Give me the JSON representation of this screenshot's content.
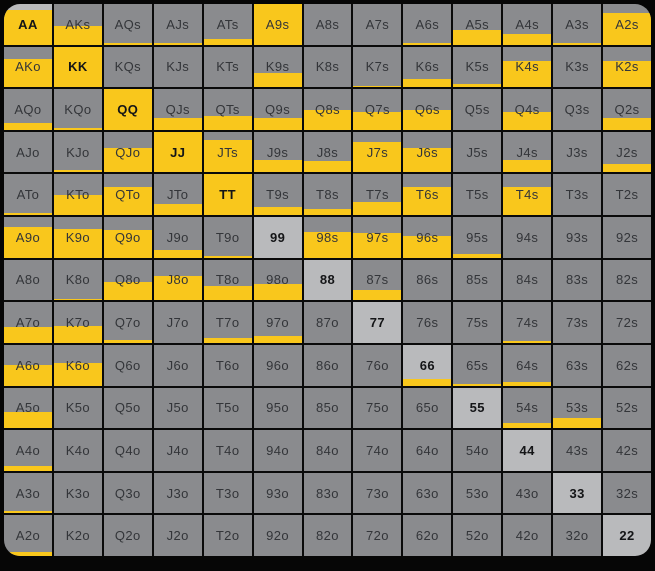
{
  "widget": {
    "name": "poker-hand-range-matrix",
    "rows": 13,
    "cols": 13
  },
  "colors": {
    "selected_fill": "#F9C71C",
    "cell_gray": "#8A8B8E",
    "pair_gray": "#B9BABC",
    "grid_line": "#0A0A0A",
    "label_text": "#333539",
    "pair_label_text": "#141517"
  },
  "chart_data": {
    "type": "heatmap",
    "description": "Poker starting-hand range grid; value = percent of cell filled yellow (selection frequency), measured bottom-up",
    "rows": [
      [
        {
          "label": "AA",
          "fill": 85,
          "pair": true
        },
        {
          "label": "AKs",
          "fill": 45,
          "pair": false
        },
        {
          "label": "AQs",
          "fill": 5,
          "pair": false
        },
        {
          "label": "AJs",
          "fill": 4,
          "pair": false
        },
        {
          "label": "ATs",
          "fill": 15,
          "pair": false
        },
        {
          "label": "A9s",
          "fill": 100,
          "pair": false
        },
        {
          "label": "A8s",
          "fill": 0,
          "pair": false
        },
        {
          "label": "A7s",
          "fill": 0,
          "pair": false
        },
        {
          "label": "A6s",
          "fill": 5,
          "pair": false
        },
        {
          "label": "A5s",
          "fill": 35,
          "pair": false
        },
        {
          "label": "A4s",
          "fill": 25,
          "pair": false
        },
        {
          "label": "A3s",
          "fill": 5,
          "pair": false
        },
        {
          "label": "A2s",
          "fill": 78,
          "pair": false
        }
      ],
      [
        {
          "label": "AKo",
          "fill": 70,
          "pair": false
        },
        {
          "label": "KK",
          "fill": 100,
          "pair": true
        },
        {
          "label": "KQs",
          "fill": 0,
          "pair": false
        },
        {
          "label": "KJs",
          "fill": 0,
          "pair": false
        },
        {
          "label": "KTs",
          "fill": 0,
          "pair": false
        },
        {
          "label": "K9s",
          "fill": 35,
          "pair": false
        },
        {
          "label": "K8s",
          "fill": 0,
          "pair": false
        },
        {
          "label": "K7s",
          "fill": 4,
          "pair": false
        },
        {
          "label": "K6s",
          "fill": 20,
          "pair": false
        },
        {
          "label": "K5s",
          "fill": 8,
          "pair": false
        },
        {
          "label": "K4s",
          "fill": 65,
          "pair": false
        },
        {
          "label": "K3s",
          "fill": 0,
          "pair": false
        },
        {
          "label": "K2s",
          "fill": 65,
          "pair": false
        }
      ],
      [
        {
          "label": "AQo",
          "fill": 18,
          "pair": false
        },
        {
          "label": "KQo",
          "fill": 5,
          "pair": false
        },
        {
          "label": "QQ",
          "fill": 100,
          "pair": true
        },
        {
          "label": "QJs",
          "fill": 30,
          "pair": false
        },
        {
          "label": "QTs",
          "fill": 35,
          "pair": false
        },
        {
          "label": "Q9s",
          "fill": 30,
          "pair": false
        },
        {
          "label": "Q8s",
          "fill": 50,
          "pair": false
        },
        {
          "label": "Q7s",
          "fill": 45,
          "pair": false
        },
        {
          "label": "Q6s",
          "fill": 50,
          "pair": false
        },
        {
          "label": "Q5s",
          "fill": 0,
          "pair": false
        },
        {
          "label": "Q4s",
          "fill": 45,
          "pair": false
        },
        {
          "label": "Q3s",
          "fill": 0,
          "pair": false
        },
        {
          "label": "Q2s",
          "fill": 30,
          "pair": false
        }
      ],
      [
        {
          "label": "AJo",
          "fill": 0,
          "pair": false
        },
        {
          "label": "KJo",
          "fill": 5,
          "pair": false
        },
        {
          "label": "QJo",
          "fill": 60,
          "pair": false
        },
        {
          "label": "JJ",
          "fill": 100,
          "pair": true
        },
        {
          "label": "JTs",
          "fill": 80,
          "pair": false
        },
        {
          "label": "J9s",
          "fill": 30,
          "pair": false
        },
        {
          "label": "J8s",
          "fill": 28,
          "pair": false
        },
        {
          "label": "J7s",
          "fill": 75,
          "pair": false
        },
        {
          "label": "J6s",
          "fill": 60,
          "pair": false
        },
        {
          "label": "J5s",
          "fill": 0,
          "pair": false
        },
        {
          "label": "J4s",
          "fill": 30,
          "pair": false
        },
        {
          "label": "J3s",
          "fill": 0,
          "pair": false
        },
        {
          "label": "J2s",
          "fill": 20,
          "pair": false
        }
      ],
      [
        {
          "label": "ATo",
          "fill": 4,
          "pair": false
        },
        {
          "label": "KTo",
          "fill": 50,
          "pair": false
        },
        {
          "label": "QTo",
          "fill": 70,
          "pair": false
        },
        {
          "label": "JTo",
          "fill": 28,
          "pair": false
        },
        {
          "label": "TT",
          "fill": 100,
          "pair": true
        },
        {
          "label": "T9s",
          "fill": 20,
          "pair": false
        },
        {
          "label": "T8s",
          "fill": 15,
          "pair": false
        },
        {
          "label": "T7s",
          "fill": 33,
          "pair": false
        },
        {
          "label": "T6s",
          "fill": 70,
          "pair": false
        },
        {
          "label": "T5s",
          "fill": 0,
          "pair": false
        },
        {
          "label": "T4s",
          "fill": 70,
          "pair": false
        },
        {
          "label": "T3s",
          "fill": 0,
          "pair": false
        },
        {
          "label": "T2s",
          "fill": 0,
          "pair": false
        }
      ],
      [
        {
          "label": "A9o",
          "fill": 75,
          "pair": false
        },
        {
          "label": "K9o",
          "fill": 70,
          "pair": false
        },
        {
          "label": "Q9o",
          "fill": 68,
          "pair": false
        },
        {
          "label": "J9o",
          "fill": 20,
          "pair": false
        },
        {
          "label": "T9o",
          "fill": 5,
          "pair": false
        },
        {
          "label": "99",
          "fill": 0,
          "pair": true
        },
        {
          "label": "98s",
          "fill": 64,
          "pair": false
        },
        {
          "label": "97s",
          "fill": 62,
          "pair": false
        },
        {
          "label": "96s",
          "fill": 54,
          "pair": false
        },
        {
          "label": "95s",
          "fill": 10,
          "pair": false
        },
        {
          "label": "94s",
          "fill": 0,
          "pair": false
        },
        {
          "label": "93s",
          "fill": 0,
          "pair": false
        },
        {
          "label": "92s",
          "fill": 0,
          "pair": false
        }
      ],
      [
        {
          "label": "A8o",
          "fill": 0,
          "pair": false
        },
        {
          "label": "K8o",
          "fill": 4,
          "pair": false
        },
        {
          "label": "Q8o",
          "fill": 45,
          "pair": false
        },
        {
          "label": "J8o",
          "fill": 60,
          "pair": false
        },
        {
          "label": "T8o",
          "fill": 35,
          "pair": false
        },
        {
          "label": "98o",
          "fill": 40,
          "pair": false
        },
        {
          "label": "88",
          "fill": 0,
          "pair": true
        },
        {
          "label": "87s",
          "fill": 25,
          "pair": false
        },
        {
          "label": "86s",
          "fill": 0,
          "pair": false
        },
        {
          "label": "85s",
          "fill": 0,
          "pair": false
        },
        {
          "label": "84s",
          "fill": 0,
          "pair": false
        },
        {
          "label": "83s",
          "fill": 0,
          "pair": false
        },
        {
          "label": "82s",
          "fill": 0,
          "pair": false
        }
      ],
      [
        {
          "label": "A7o",
          "fill": 40,
          "pair": false
        },
        {
          "label": "K7o",
          "fill": 42,
          "pair": false
        },
        {
          "label": "Q7o",
          "fill": 8,
          "pair": false
        },
        {
          "label": "J7o",
          "fill": 0,
          "pair": false
        },
        {
          "label": "T7o",
          "fill": 12,
          "pair": false
        },
        {
          "label": "97o",
          "fill": 18,
          "pair": false
        },
        {
          "label": "87o",
          "fill": 0,
          "pair": false
        },
        {
          "label": "77",
          "fill": 0,
          "pair": true
        },
        {
          "label": "76s",
          "fill": 0,
          "pair": false
        },
        {
          "label": "75s",
          "fill": 0,
          "pair": false
        },
        {
          "label": "74s",
          "fill": 5,
          "pair": false
        },
        {
          "label": "73s",
          "fill": 0,
          "pair": false
        },
        {
          "label": "72s",
          "fill": 0,
          "pair": false
        }
      ],
      [
        {
          "label": "A6o",
          "fill": 50,
          "pair": false
        },
        {
          "label": "K6o",
          "fill": 55,
          "pair": false
        },
        {
          "label": "Q6o",
          "fill": 0,
          "pair": false
        },
        {
          "label": "J6o",
          "fill": 0,
          "pair": false
        },
        {
          "label": "T6o",
          "fill": 0,
          "pair": false
        },
        {
          "label": "96o",
          "fill": 0,
          "pair": false
        },
        {
          "label": "86o",
          "fill": 0,
          "pair": false
        },
        {
          "label": "76o",
          "fill": 0,
          "pair": false
        },
        {
          "label": "66",
          "fill": 15,
          "pair": true
        },
        {
          "label": "65s",
          "fill": 5,
          "pair": false
        },
        {
          "label": "64s",
          "fill": 8,
          "pair": false
        },
        {
          "label": "63s",
          "fill": 0,
          "pair": false
        },
        {
          "label": "62s",
          "fill": 0,
          "pair": false
        }
      ],
      [
        {
          "label": "A5o",
          "fill": 40,
          "pair": false
        },
        {
          "label": "K5o",
          "fill": 0,
          "pair": false
        },
        {
          "label": "Q5o",
          "fill": 0,
          "pair": false
        },
        {
          "label": "J5o",
          "fill": 0,
          "pair": false
        },
        {
          "label": "T5o",
          "fill": 0,
          "pair": false
        },
        {
          "label": "95o",
          "fill": 0,
          "pair": false
        },
        {
          "label": "85o",
          "fill": 0,
          "pair": false
        },
        {
          "label": "75o",
          "fill": 0,
          "pair": false
        },
        {
          "label": "65o",
          "fill": 0,
          "pair": false
        },
        {
          "label": "55",
          "fill": 0,
          "pair": true
        },
        {
          "label": "54s",
          "fill": 12,
          "pair": false
        },
        {
          "label": "53s",
          "fill": 25,
          "pair": false
        },
        {
          "label": "52s",
          "fill": 0,
          "pair": false
        }
      ],
      [
        {
          "label": "A4o",
          "fill": 12,
          "pair": false
        },
        {
          "label": "K4o",
          "fill": 0,
          "pair": false
        },
        {
          "label": "Q4o",
          "fill": 0,
          "pair": false
        },
        {
          "label": "J4o",
          "fill": 0,
          "pair": false
        },
        {
          "label": "T4o",
          "fill": 0,
          "pair": false
        },
        {
          "label": "94o",
          "fill": 0,
          "pair": false
        },
        {
          "label": "84o",
          "fill": 0,
          "pair": false
        },
        {
          "label": "74o",
          "fill": 0,
          "pair": false
        },
        {
          "label": "64o",
          "fill": 0,
          "pair": false
        },
        {
          "label": "54o",
          "fill": 0,
          "pair": false
        },
        {
          "label": "44",
          "fill": 0,
          "pair": true
        },
        {
          "label": "43s",
          "fill": 0,
          "pair": false
        },
        {
          "label": "42s",
          "fill": 0,
          "pair": false
        }
      ],
      [
        {
          "label": "A3o",
          "fill": 7,
          "pair": false
        },
        {
          "label": "K3o",
          "fill": 0,
          "pair": false
        },
        {
          "label": "Q3o",
          "fill": 0,
          "pair": false
        },
        {
          "label": "J3o",
          "fill": 0,
          "pair": false
        },
        {
          "label": "T3o",
          "fill": 0,
          "pair": false
        },
        {
          "label": "93o",
          "fill": 0,
          "pair": false
        },
        {
          "label": "83o",
          "fill": 0,
          "pair": false
        },
        {
          "label": "73o",
          "fill": 0,
          "pair": false
        },
        {
          "label": "63o",
          "fill": 0,
          "pair": false
        },
        {
          "label": "53o",
          "fill": 0,
          "pair": false
        },
        {
          "label": "43o",
          "fill": 0,
          "pair": false
        },
        {
          "label": "33",
          "fill": 0,
          "pair": true
        },
        {
          "label": "32s",
          "fill": 0,
          "pair": false
        }
      ],
      [
        {
          "label": "A2o",
          "fill": 10,
          "pair": false
        },
        {
          "label": "K2o",
          "fill": 0,
          "pair": false
        },
        {
          "label": "Q2o",
          "fill": 0,
          "pair": false
        },
        {
          "label": "J2o",
          "fill": 0,
          "pair": false
        },
        {
          "label": "T2o",
          "fill": 0,
          "pair": false
        },
        {
          "label": "92o",
          "fill": 0,
          "pair": false
        },
        {
          "label": "82o",
          "fill": 0,
          "pair": false
        },
        {
          "label": "72o",
          "fill": 0,
          "pair": false
        },
        {
          "label": "62o",
          "fill": 0,
          "pair": false
        },
        {
          "label": "52o",
          "fill": 0,
          "pair": false
        },
        {
          "label": "42o",
          "fill": 0,
          "pair": false
        },
        {
          "label": "32o",
          "fill": 0,
          "pair": false
        },
        {
          "label": "22",
          "fill": 0,
          "pair": true
        }
      ]
    ]
  }
}
